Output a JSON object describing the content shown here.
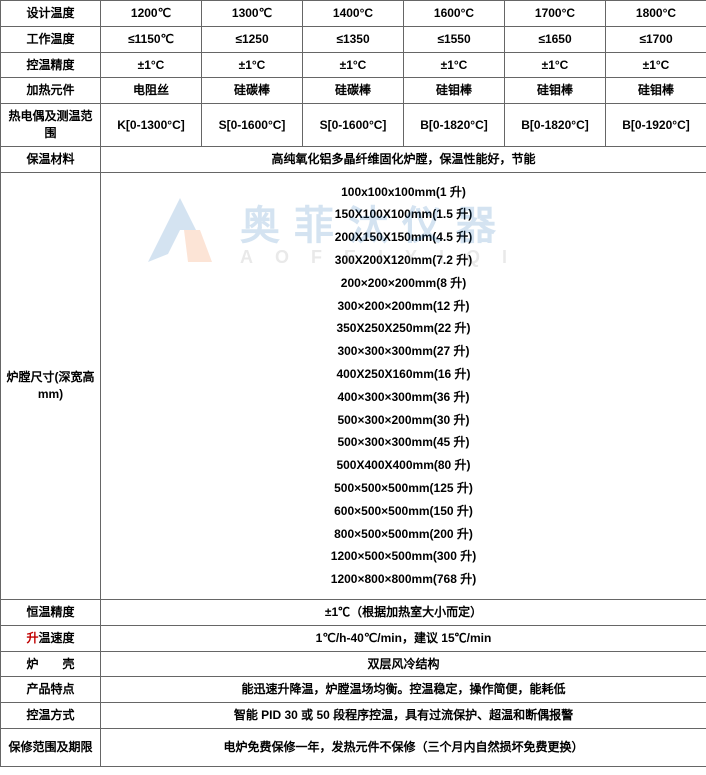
{
  "watermark": {
    "cn": "奥菲汰仪器",
    "en": "AOFEIYIQI",
    "logo_color_main": "#1a6bb3",
    "logo_color_accent": "#f36c21"
  },
  "table": {
    "border_color": "#666666",
    "text_color": "#000000",
    "background": "#ffffff",
    "red_color": "#c00000",
    "rows": {
      "design_temp": {
        "label": "设计温度",
        "cells": [
          "1200℃",
          "1300℃",
          "1400°C",
          "1600°C",
          "1700°C",
          "1800°C"
        ]
      },
      "work_temp": {
        "label": "工作温度",
        "cells": [
          "≤1150℃",
          "≤1250",
          "≤1350",
          "≤1550",
          "≤1650",
          "≤1700"
        ]
      },
      "control_accuracy": {
        "label": "控温精度",
        "cells": [
          "±1°C",
          "±1°C",
          "±1°C",
          "±1°C",
          "±1°C",
          "±1°C"
        ]
      },
      "heating_element": {
        "label": "加热元件",
        "cells": [
          "电阻丝",
          "硅碳棒",
          "硅碳棒",
          "硅钼棒",
          "硅钼棒",
          "硅钼棒"
        ]
      },
      "thermocouple": {
        "label": "热电偶及测温范围",
        "cells": [
          "K[0-1300°C]",
          "S[0-1600°C]",
          "S[0-1600°C]",
          "B[0-1820°C]",
          "B[0-1820°C]",
          "B[0-1920°C]"
        ]
      },
      "insulation": {
        "label": "保温材料",
        "merged": "高纯氧化铝多晶纤维固化炉膛，保温性能好，节能"
      },
      "chamber_size": {
        "label": "炉膛尺寸(深宽高 mm)",
        "sizes": [
          "100x100x100mm(1 升)",
          "150X100X100mm(1.5 升)",
          "200X150X150mm(4.5 升)",
          "300X200X120mm(7.2 升)",
          "200×200×200mm(8 升)",
          "300×200×200mm(12 升)",
          "350X250X250mm(22 升)",
          "300×300×300mm(27 升)",
          "400X250X160mm(16 升)",
          "400×300×300mm(36 升)",
          "500×300×200mm(30 升)",
          "500×300×300mm(45 升)",
          "500X400X400mm(80 升)",
          "500×500×500mm(125 升)",
          "600×500×500mm(150 升)",
          "800×500×500mm(200 升)",
          "1200×500×500mm(300 升)",
          "1200×800×800mm(768 升)"
        ]
      },
      "temp_accuracy": {
        "label": "恒温精度",
        "merged": "±1℃（根据加热室大小而定）"
      },
      "heating_rate": {
        "label_prefix_red": "升",
        "label_rest": "温速度",
        "merged": "1℃/h-40℃/min，建议 15℃/min"
      },
      "shell": {
        "label": "炉　　壳",
        "merged": "双层风冷结构"
      },
      "features": {
        "label": "产品特点",
        "merged": "能迅速升降温，炉膛温场均衡。控温稳定，操作简便，能耗低"
      },
      "control_mode": {
        "label": "控温方式",
        "merged": "智能 PID 30 或 50 段程序控温，具有过流保护、超温和断偶报警"
      },
      "warranty": {
        "label": "保修范围及期限",
        "merged": "电炉免费保修一年，发热元件不保修（三个月内自然损坏免费更换）"
      }
    }
  }
}
